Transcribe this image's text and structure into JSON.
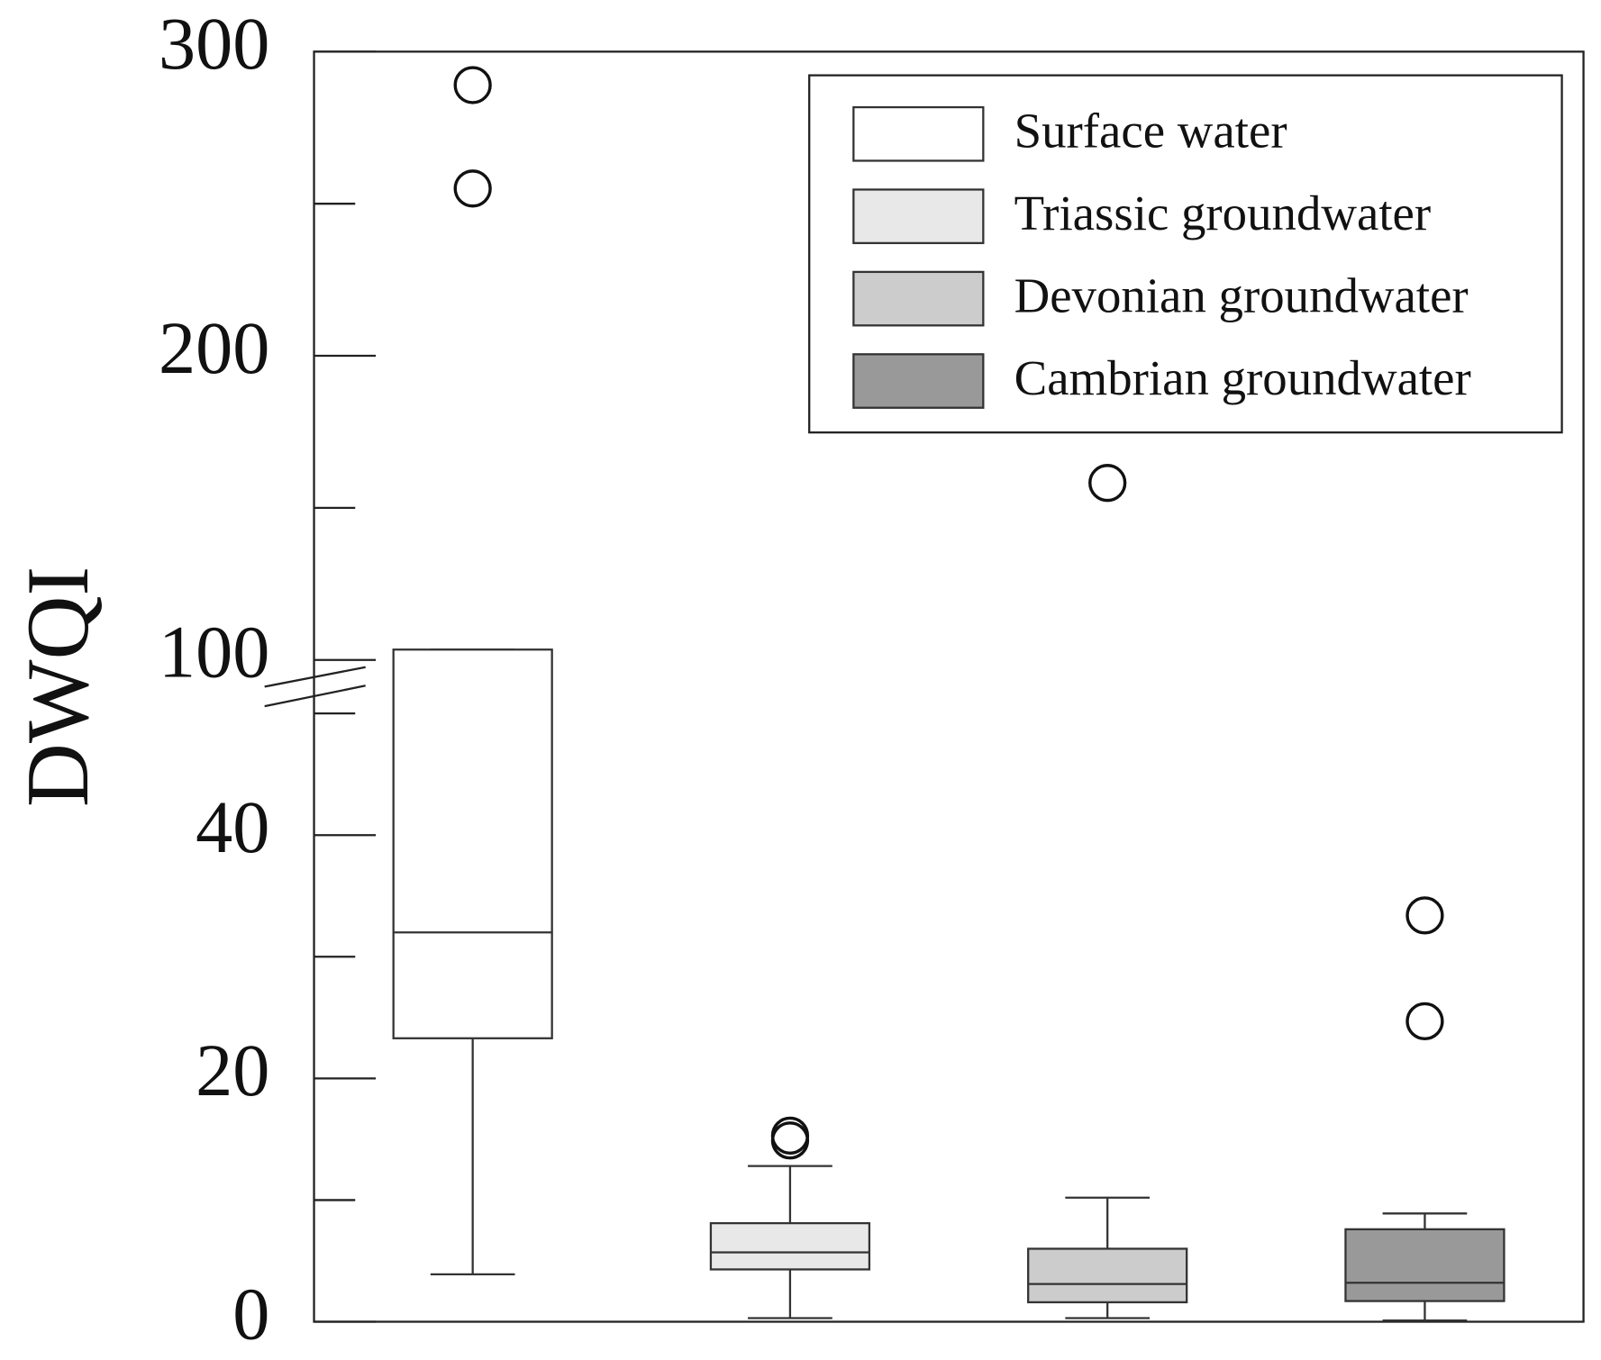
{
  "chart_data": {
    "type": "box",
    "ylabel": "DWQI",
    "ylim": [
      0,
      300
    ],
    "ybreak": [
      50,
      100
    ],
    "yticks": [
      0,
      20,
      40,
      100,
      200,
      300
    ],
    "yminor_ticks": [
      10,
      30,
      50,
      150,
      250
    ],
    "legend": "upper right",
    "series": [
      {
        "name": "Surface water",
        "color": "#ffffff",
        "min": 3.9,
        "q1": 23.3,
        "median": 32.0,
        "q3": 103.4,
        "max": 103.4,
        "outliers": [
          289,
          255
        ]
      },
      {
        "name": "Triassic groundwater",
        "color": "#e8e8e8",
        "min": 0.3,
        "q1": 4.3,
        "median": 5.7,
        "q3": 8.1,
        "max": 12.8,
        "outliers": [
          15.3,
          14.9
        ]
      },
      {
        "name": "Devonian groundwater",
        "color": "#cccccc",
        "min": 0.3,
        "q1": 1.6,
        "median": 3.1,
        "q3": 6.0,
        "max": 10.2,
        "outliers": [
          158.2
        ]
      },
      {
        "name": "Cambrian groundwater",
        "color": "#999999",
        "min": 0.1,
        "q1": 1.7,
        "median": 3.2,
        "q3": 7.6,
        "max": 8.9,
        "outliers": [
          33.4,
          24.7
        ]
      }
    ]
  }
}
